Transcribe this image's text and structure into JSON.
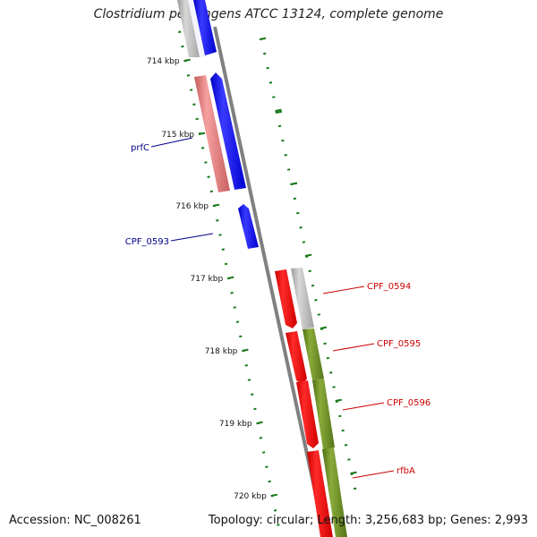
{
  "title": "Clostridium perfringens ATCC 13124, complete genome",
  "footer": {
    "accession": "Accession: NC_008261",
    "summary": "Topology: circular; Length: 3,256,683 bp; Genes: 2,993"
  },
  "colors": {
    "backbone": "#808080",
    "tick": "#1a7a1a",
    "forward_cds": "#0000ff",
    "forward_rna": "#f08080",
    "reverse_cds": "#ff0000",
    "reverse_gray": "#b5b5b5",
    "reverse_olive": "#6b8e23",
    "label_forward": "#00008b",
    "label_reverse": "#cc0000"
  },
  "scale_labels": [
    "714 kbp",
    "715 kbp",
    "716 kbp",
    "717 kbp",
    "718 kbp",
    "719 kbp",
    "720 kbp"
  ],
  "gene_labels": [
    {
      "text": "prfC",
      "strand": "forward"
    },
    {
      "text": "CPF_0593",
      "strand": "forward"
    },
    {
      "text": "CPF_0594",
      "strand": "reverse"
    },
    {
      "text": "CPF_0595",
      "strand": "reverse"
    },
    {
      "text": "CPF_0596",
      "strand": "reverse"
    },
    {
      "text": "rfbA",
      "strand": "reverse"
    }
  ]
}
